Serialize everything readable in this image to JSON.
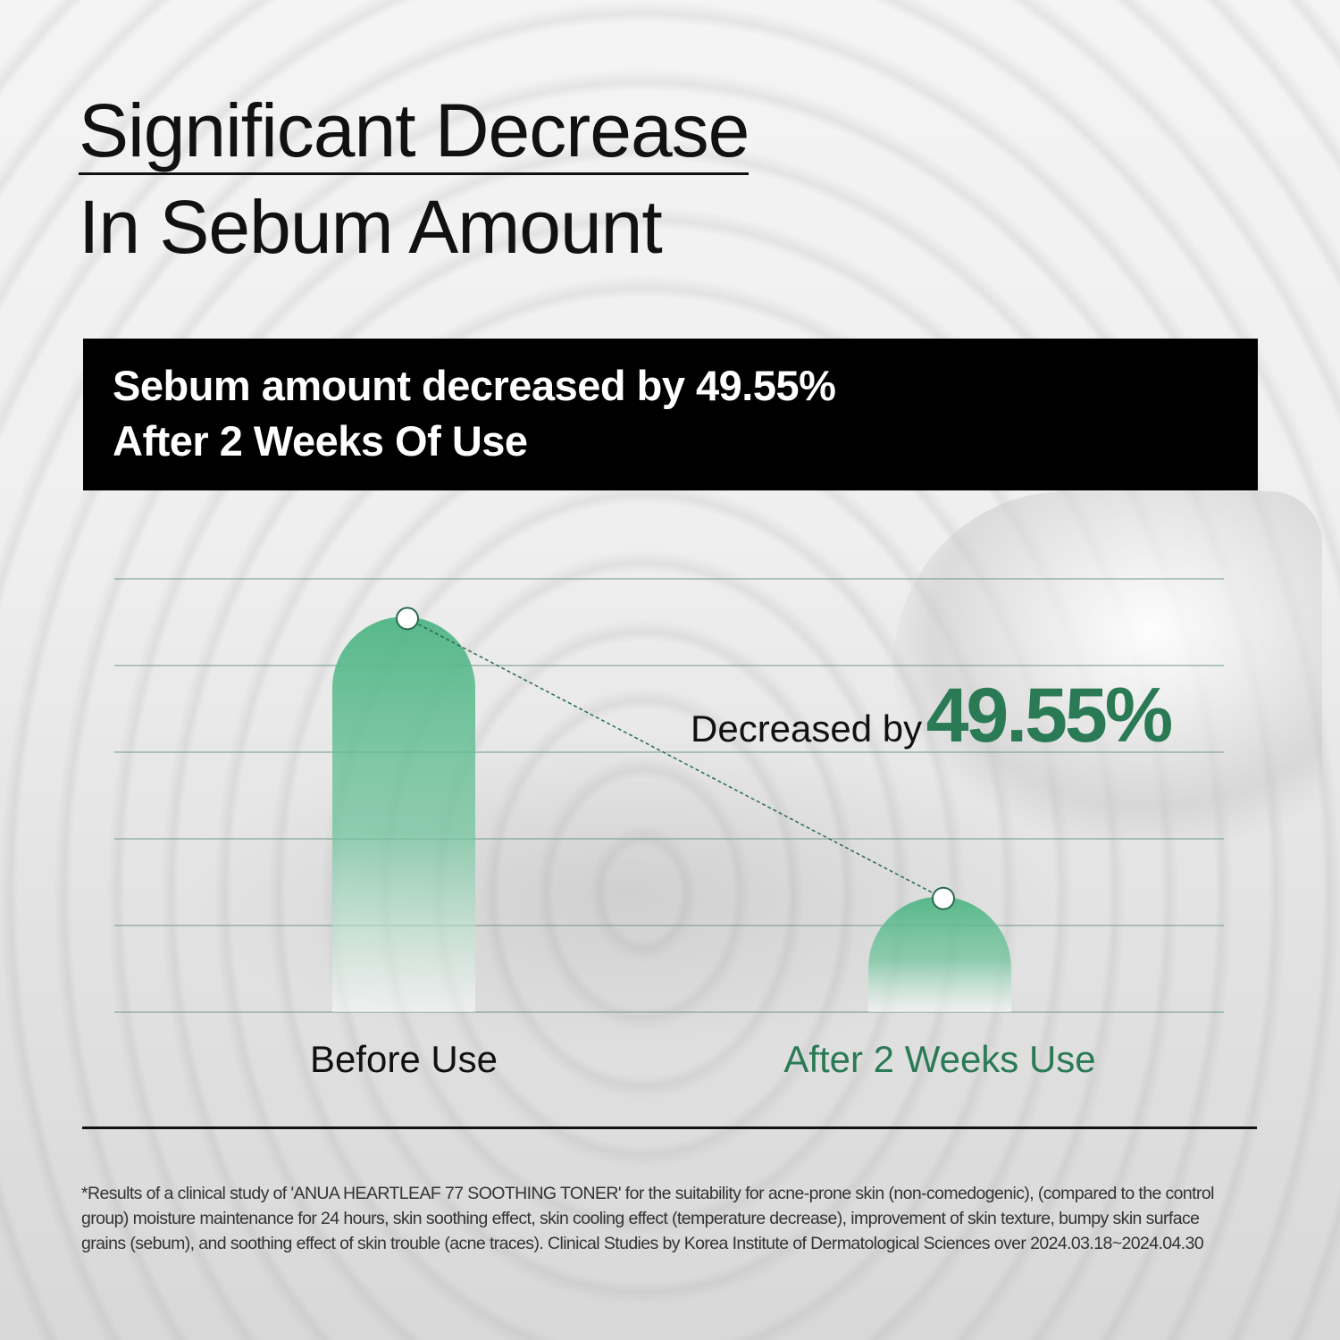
{
  "title": {
    "line1": "Significant Decrease",
    "line2": "In Sebum Amount"
  },
  "banner": {
    "line1": "Sebum amount decreased by 49.55%",
    "line2": "After 2 Weeks Of Use"
  },
  "callout": {
    "label": "Decreased by",
    "value": "49.55%"
  },
  "footnote": "*Results of a clinical study of 'ANUA HEARTLEAF 77 SOOTHING TONER' for the suitability for acne-prone skin (non-comedogenic), (compared to the control group) moisture maintenance for 24 hours, skin soothing effect, skin cooling effect (temperature decrease), improvement of skin texture, bumpy skin surface grains (sebum), and soothing effect of skin trouble (acne traces). Clinical Studies by Korea Institute of Dermatological Sciences over 2024.03.18~2024.04.30",
  "colors": {
    "accent": "#2a7a55",
    "bar": "#4fb585",
    "gridline": "#6f9a88"
  },
  "chart_data": {
    "type": "bar",
    "categories": [
      "Before Use",
      "After 2 Weeks Use"
    ],
    "values": [
      100,
      50.45
    ],
    "ylim": [
      30,
      106.7
    ],
    "grid": true,
    "annotation": "Decreased by 49.55%",
    "xlabel": "",
    "ylabel": ""
  }
}
